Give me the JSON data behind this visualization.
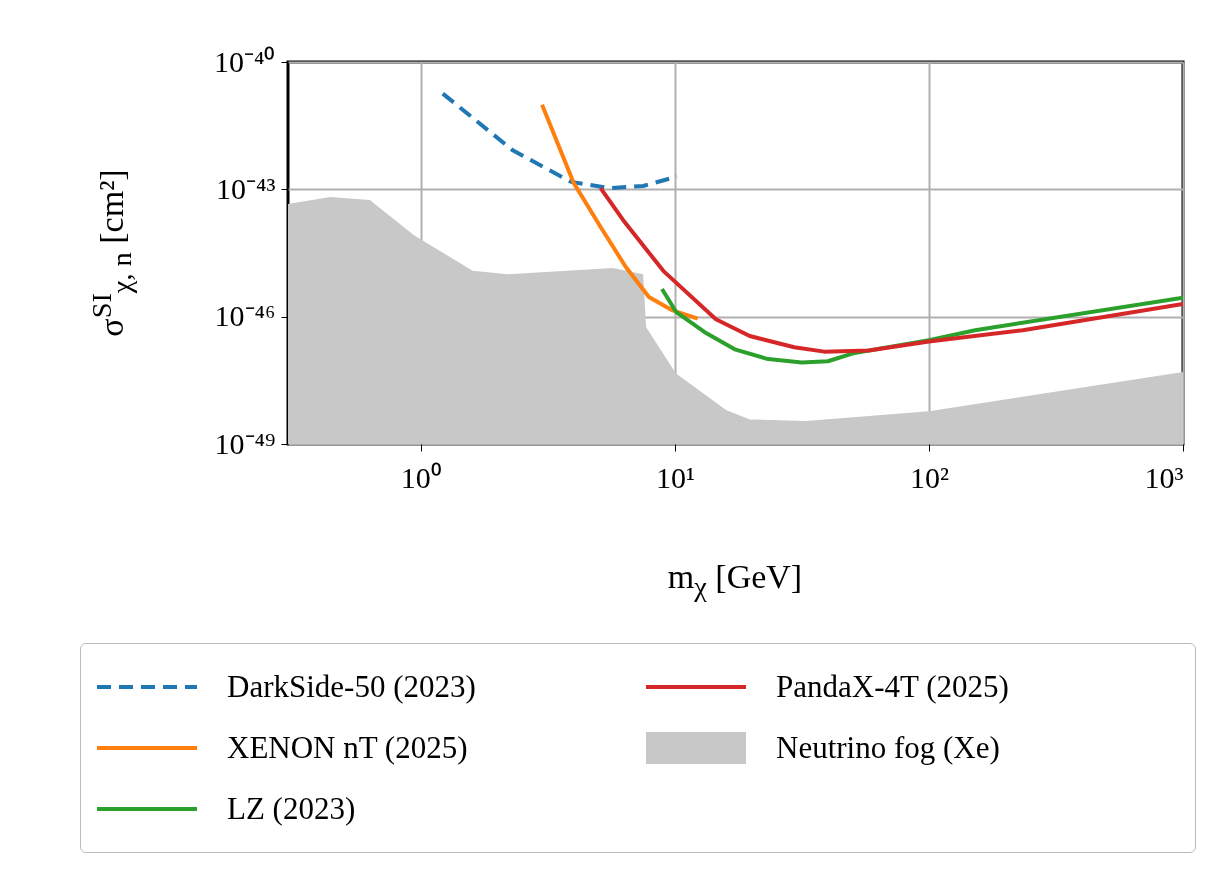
{
  "chart_data": {
    "type": "line",
    "xlabel": "m$_{χ}$ [GeV]",
    "ylabel": "σ$^{SI}$$_{χ, n}$ [cm²]",
    "log": "xy",
    "grid": true,
    "legend": "bottom",
    "xlim": [
      0.3,
      1000
    ],
    "ylim": [
      1e-49,
      1e-40
    ],
    "xticks": [
      {
        "value": 1,
        "label": "10⁰"
      },
      {
        "value": 10,
        "label": "10¹"
      },
      {
        "value": 100,
        "label": "10²"
      },
      {
        "value": 1000,
        "label": "10³"
      }
    ],
    "yticks": [
      {
        "value": 1e-49,
        "label": "10⁻⁴⁹"
      },
      {
        "value": 1e-46,
        "label": "10⁻⁴⁶"
      },
      {
        "value": 1e-43,
        "label": "10⁻⁴³"
      },
      {
        "value": 1e-40,
        "label": "10⁻⁴⁰"
      }
    ],
    "series": [
      {
        "name": "DarkSide-50 (2023)",
        "color": "#1f77b4",
        "line_style": "dashed",
        "x": [
          1.22,
          2.3,
          3.9,
          5.5,
          7.5,
          10.2
        ],
        "values": [
          1.8e-41,
          8.3e-43,
          1.5e-43,
          1.07e-43,
          1.2e-43,
          2e-43
        ]
      },
      {
        "name": "XENON nT (2025)",
        "color": "#ff7f0e",
        "x": [
          3.0,
          4.0,
          5.1,
          6.4,
          7.9,
          9.8,
          12.3
        ],
        "values": [
          9.8e-42,
          1.4e-43,
          1.3e-44,
          1.5e-45,
          2.9e-46,
          1.4e-46,
          9e-47
        ]
      },
      {
        "name": "LZ (2023)",
        "color": "#2ca02c",
        "x": [
          8.9,
          10.1,
          13.1,
          17.2,
          23.3,
          31.6,
          40,
          51,
          100,
          152,
          1000
        ],
        "values": [
          4.5e-46,
          1.3e-46,
          4.3e-47,
          1.7e-47,
          1e-47,
          8.3e-48,
          8.9e-48,
          1.4e-47,
          2.8e-47,
          4.8e-47,
          2.8e-46
        ]
      },
      {
        "name": "PandaX-4T (2025)",
        "color": "#d62728",
        "x": [
          5.1,
          6.25,
          9.0,
          14.5,
          19.7,
          29.5,
          38.7,
          58,
          100,
          234,
          1000
        ],
        "values": [
          1.07e-43,
          1.9e-44,
          1.2e-45,
          8.7e-47,
          3.5e-47,
          1.9e-47,
          1.5e-47,
          1.6e-47,
          2.6e-47,
          4.8e-47,
          2e-46
        ]
      },
      {
        "name": "Neutrino fog (Xe)",
        "color": "#c8c8c8",
        "type": "area",
        "x": [
          0.3,
          0.44,
          0.63,
          0.94,
          1.6,
          2.2,
          5.7,
          7.5,
          7.7,
          10.1,
          15.9,
          19.7,
          32.7,
          100,
          1000
        ],
        "values": [
          4.5e-44,
          6.6e-44,
          5.6e-44,
          8.3e-45,
          1.2e-45,
          1e-45,
          1.4e-45,
          1e-45,
          5.7e-47,
          4.6e-48,
          6.3e-49,
          3.8e-49,
          3.5e-49,
          5.9e-49,
          5e-48
        ]
      }
    ]
  }
}
